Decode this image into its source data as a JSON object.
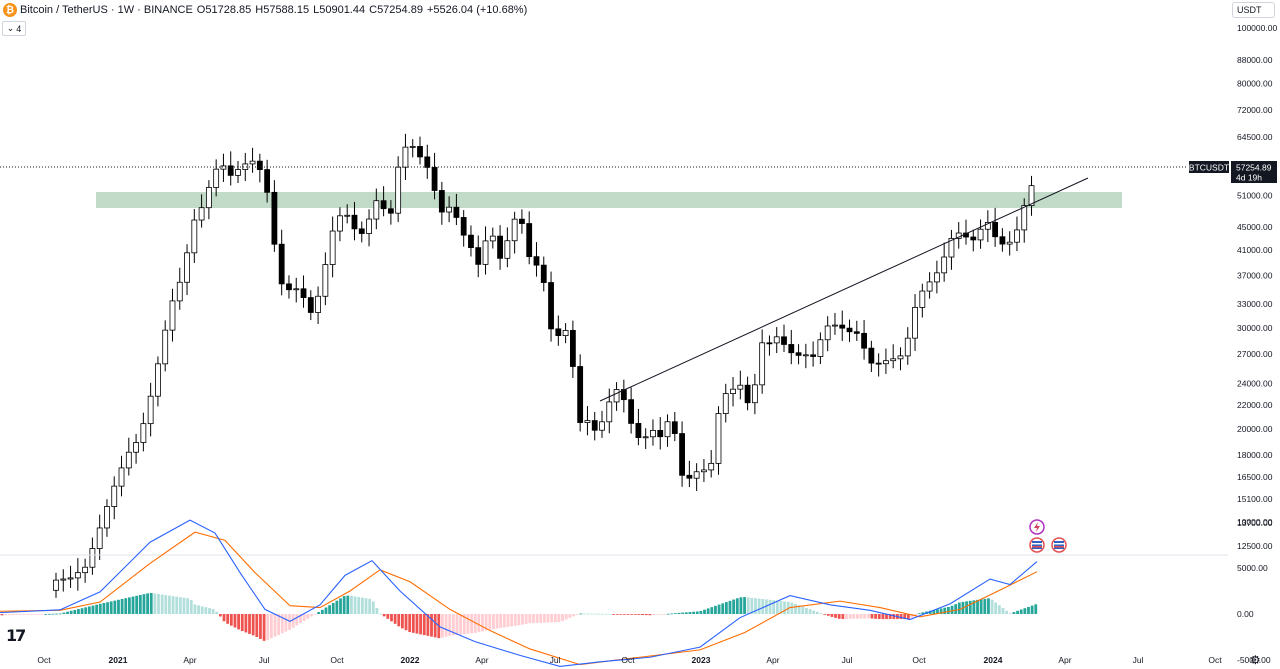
{
  "header": {
    "symbol_icon": "bitcoin-logo-icon",
    "symbol_title": "Bitcoin / TetherUS · 1W · BINANCE",
    "open_label": "O",
    "open": "51728.85",
    "high_label": "H",
    "high": "57588.15",
    "low_label": "L",
    "low": "50901.44",
    "close_label": "C",
    "close": "57254.89",
    "change": "+5526.04 (+10.68%)",
    "indicators_count": "4"
  },
  "currency": "USDT",
  "price_axis": {
    "labels": [
      "100000.00",
      "88000.00",
      "80000.00",
      "72000.00",
      "64500.00",
      "51000.00",
      "45000.00",
      "41000.00",
      "37000.00",
      "33000.00",
      "30000.00",
      "27000.00",
      "24000.00",
      "22000.00",
      "20000.00",
      "18000.00",
      "16500.00",
      "15100.00",
      "13700.00",
      "12500.00"
    ],
    "symbol_tag": "BTCUSDT",
    "last_price": "57254.89",
    "countdown": "4d 19h"
  },
  "macd_axis": {
    "labels": [
      "10000.00",
      "5000.00",
      "0.00",
      "-5000.00"
    ]
  },
  "time_axis": {
    "labels": [
      "Oct",
      "2021",
      "Apr",
      "Jul",
      "Oct",
      "2022",
      "Apr",
      "Jul",
      "Oct",
      "2023",
      "Apr",
      "Jul",
      "Oct",
      "2024",
      "Apr",
      "Jul",
      "Oct"
    ]
  },
  "colors": {
    "candle_up": "#ffffff",
    "candle_down": "#000000",
    "candle_border": "#000000",
    "zone": "#8fbc9a",
    "macd_line": "#2962ff",
    "signal_line": "#ff6d00",
    "hist_up": "#26a69a",
    "hist_up_light": "#b2dfdb",
    "hist_down": "#ef5350",
    "hist_down_light": "#ffcdd2"
  },
  "icons": {
    "collapse": "chevron-down-icon",
    "event_flash": "flash-event-icon",
    "event_flag_1": "us-flag-event-icon",
    "event_flag_2": "us-flag-event-icon",
    "logo": "tradingview-logo-icon",
    "settings": "gear-icon"
  }
}
